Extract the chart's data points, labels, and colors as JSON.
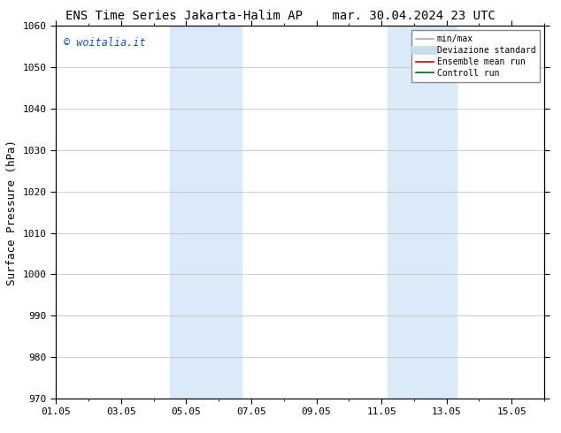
{
  "title_left": "ENS Time Series Jakarta-Halim AP",
  "title_right": "mar. 30.04.2024 23 UTC",
  "ylabel": "Surface Pressure (hPa)",
  "ylim": [
    970,
    1060
  ],
  "yticks": [
    970,
    980,
    990,
    1000,
    1010,
    1020,
    1030,
    1040,
    1050,
    1060
  ],
  "total_days": 15,
  "xtick_labels": [
    "01.05",
    "03.05",
    "05.05",
    "07.05",
    "09.05",
    "11.05",
    "13.05",
    "15.05"
  ],
  "xtick_positions_days": [
    0,
    2,
    4,
    6,
    8,
    10,
    12,
    14
  ],
  "shaded_bands": [
    {
      "x_start_day": 3.5,
      "x_end_day": 5.7
    },
    {
      "x_start_day": 10.2,
      "x_end_day": 12.3
    }
  ],
  "band_color": "#daeaf8",
  "watermark": "© woitalia.it",
  "watermark_color": "#1155bb",
  "legend_items": [
    {
      "label": "min/max",
      "color": "#aaaaaa",
      "lw": 1.2,
      "style": "-"
    },
    {
      "label": "Deviazione standard",
      "color": "#c8ddf0",
      "lw": 7,
      "style": "-"
    },
    {
      "label": "Ensemble mean run",
      "color": "#cc0000",
      "lw": 1.2,
      "style": "-"
    },
    {
      "label": "Controll run",
      "color": "#006600",
      "lw": 1.2,
      "style": "-"
    }
  ],
  "background_color": "#ffffff",
  "plot_bg_color": "#ffffff",
  "grid_color": "#bbbbbb",
  "title_fontsize": 10,
  "ylabel_fontsize": 9,
  "tick_fontsize": 8,
  "watermark_fontsize": 8.5,
  "legend_fontsize": 7
}
